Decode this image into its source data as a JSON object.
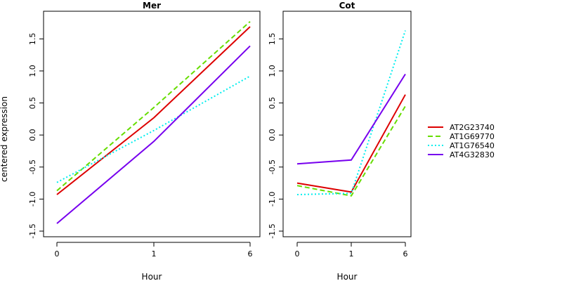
{
  "chart_data": {
    "type": "line",
    "ylabel": "centered expression",
    "legend_position": "right",
    "series_styles": [
      {
        "name": "AT2G23740",
        "color": "#dd0000",
        "dash": "solid"
      },
      {
        "name": "AT1G69770",
        "color": "#66dd00",
        "dash": "dashed"
      },
      {
        "name": "AT1G76540",
        "color": "#00eeee",
        "dash": "dotted"
      },
      {
        "name": "AT4G32830",
        "color": "#7700ee",
        "dash": "dotdash"
      }
    ],
    "panels": [
      {
        "title": "Mer",
        "xlabel": "Hour",
        "x": [
          "0",
          "1",
          "6"
        ],
        "ylim": [
          -1.5,
          1.8
        ],
        "yticks": [
          "-1.5",
          "-1.0",
          "-0.5",
          "0.0",
          "0.5",
          "1.0",
          "1.5"
        ],
        "series": [
          {
            "name": "AT2G23740",
            "values": [
              -0.93,
              0.27,
              1.69
            ]
          },
          {
            "name": "AT1G69770",
            "values": [
              -0.87,
              0.43,
              1.77
            ]
          },
          {
            "name": "AT1G76540",
            "values": [
              -0.74,
              0.07,
              0.92
            ]
          },
          {
            "name": "AT4G32830",
            "values": [
              -1.38,
              -0.1,
              1.39
            ]
          }
        ]
      },
      {
        "title": "Cot",
        "xlabel": "Hour",
        "x": [
          "0",
          "1",
          "6"
        ],
        "ylim": [
          -1.5,
          1.8
        ],
        "yticks": [
          "-1.5",
          "-1.0",
          "-0.5",
          "0.0",
          "0.5",
          "1.0",
          "1.5"
        ],
        "series": [
          {
            "name": "AT2G23740",
            "values": [
              -0.75,
              -0.89,
              0.63
            ]
          },
          {
            "name": "AT1G69770",
            "values": [
              -0.79,
              -0.95,
              0.45
            ]
          },
          {
            "name": "AT1G76540",
            "values": [
              -0.93,
              -0.91,
              1.63
            ]
          },
          {
            "name": "AT4G32830",
            "values": [
              -0.45,
              -0.39,
              0.95
            ]
          }
        ]
      }
    ]
  }
}
